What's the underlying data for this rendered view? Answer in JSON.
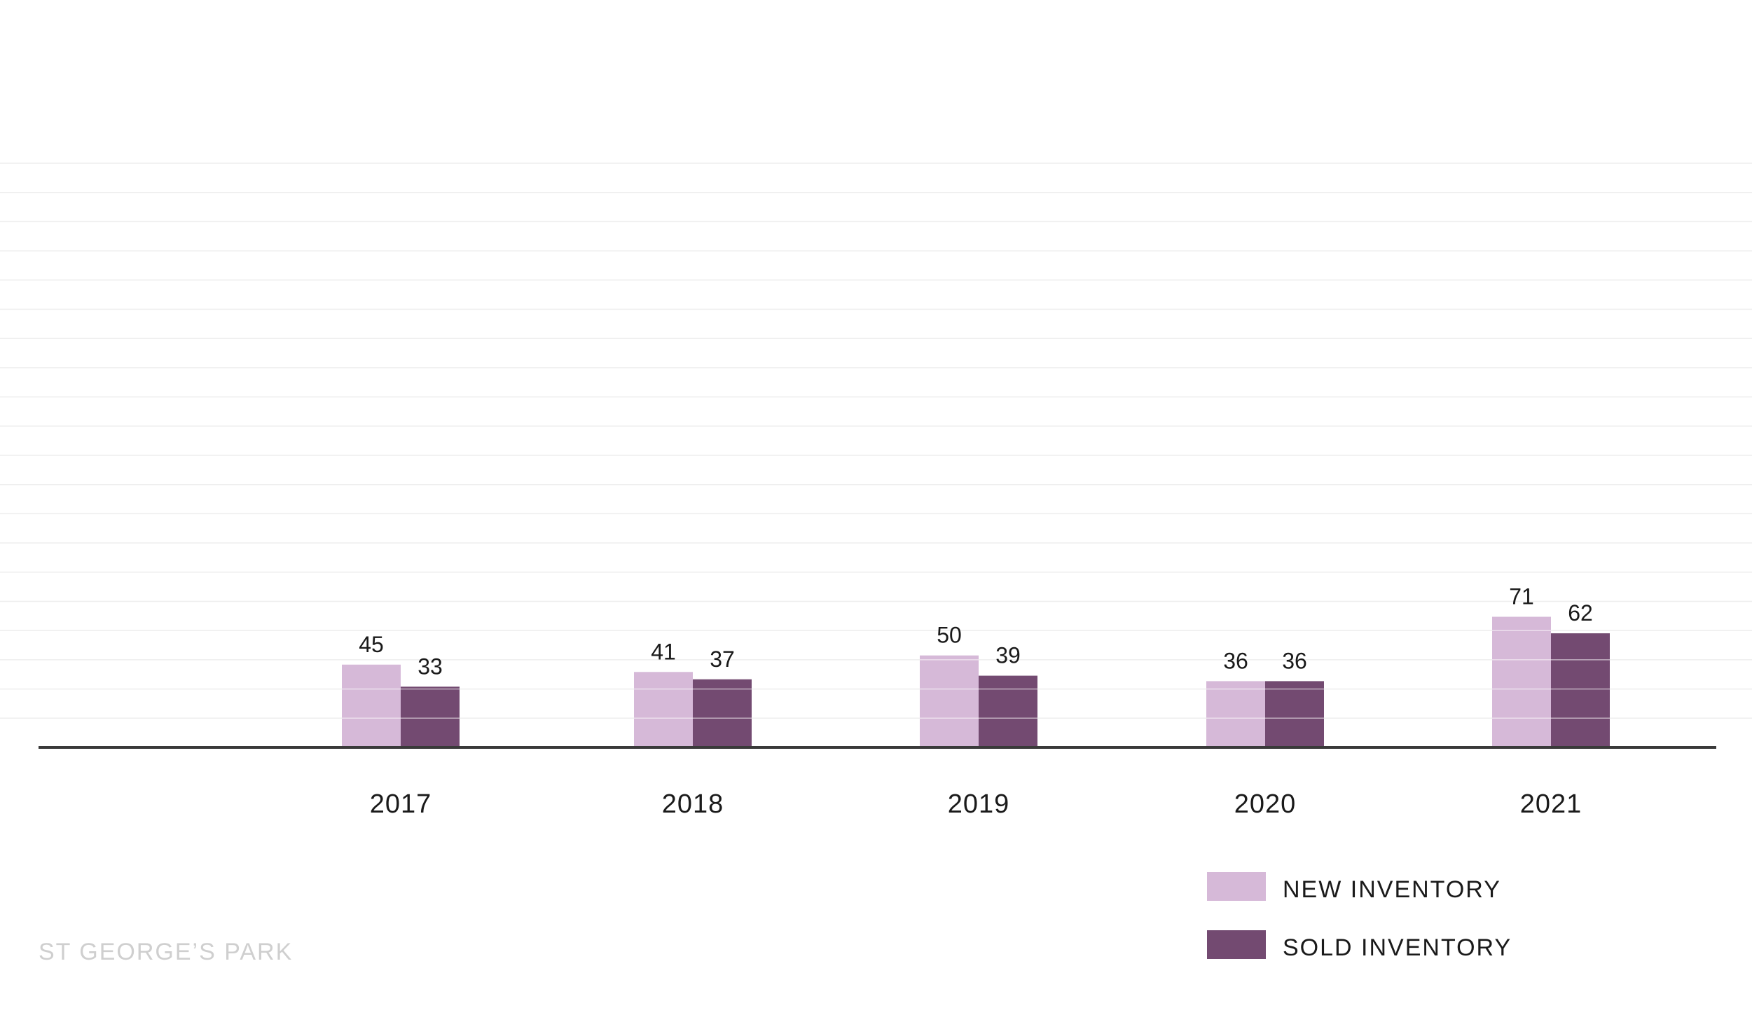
{
  "chart_data": {
    "type": "bar",
    "categories": [
      "2017",
      "2018",
      "2019",
      "2020",
      "2021"
    ],
    "series": [
      {
        "name": "NEW INVENTORY",
        "values": [
          45,
          41,
          50,
          36,
          71
        ]
      },
      {
        "name": "SOLD INVENTORY",
        "values": [
          33,
          37,
          39,
          36,
          62
        ]
      }
    ],
    "title": "",
    "xlabel": "",
    "ylabel": "",
    "ylim": [
      0,
      200
    ],
    "grid": true,
    "legend_position": "bottom-right",
    "colors": [
      "#d6b9d8",
      "#734a71"
    ]
  },
  "footer": {
    "label": "ST GEORGE’S PARK"
  }
}
